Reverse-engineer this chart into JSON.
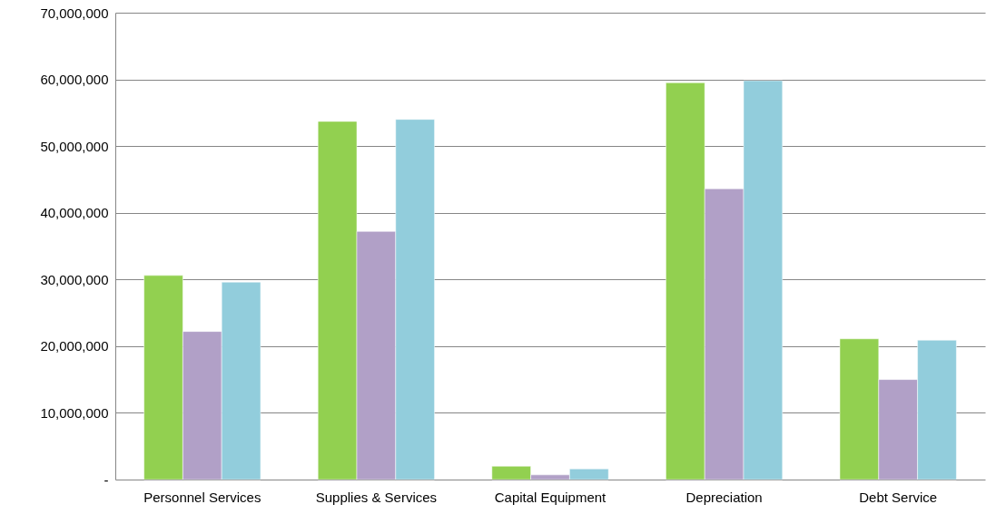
{
  "chart_data": {
    "type": "bar",
    "categories": [
      "Personnel Services",
      "Supplies & Services",
      "Capital Equipment",
      "Depreciation",
      "Debt Service"
    ],
    "series": [
      {
        "color": "#92d050",
        "values": [
          30600000,
          53700000,
          2000000,
          59500000,
          21100000
        ]
      },
      {
        "color": "#b1a0c7",
        "values": [
          22200000,
          37200000,
          700000,
          43600000,
          15000000
        ]
      },
      {
        "color": "#92cddc",
        "values": [
          29600000,
          54000000,
          1600000,
          59800000,
          20900000
        ]
      }
    ],
    "ylim": [
      0,
      70000000
    ],
    "yticks": [
      {
        "value": 0,
        "label": "-"
      },
      {
        "value": 10000000,
        "label": "10,000,000"
      },
      {
        "value": 20000000,
        "label": "20,000,000"
      },
      {
        "value": 30000000,
        "label": "30,000,000"
      },
      {
        "value": 40000000,
        "label": "40,000,000"
      },
      {
        "value": 50000000,
        "label": "50,000,000"
      },
      {
        "value": 60000000,
        "label": "60,000,000"
      },
      {
        "value": 70000000,
        "label": "70,000,000"
      }
    ],
    "grid": "y"
  }
}
